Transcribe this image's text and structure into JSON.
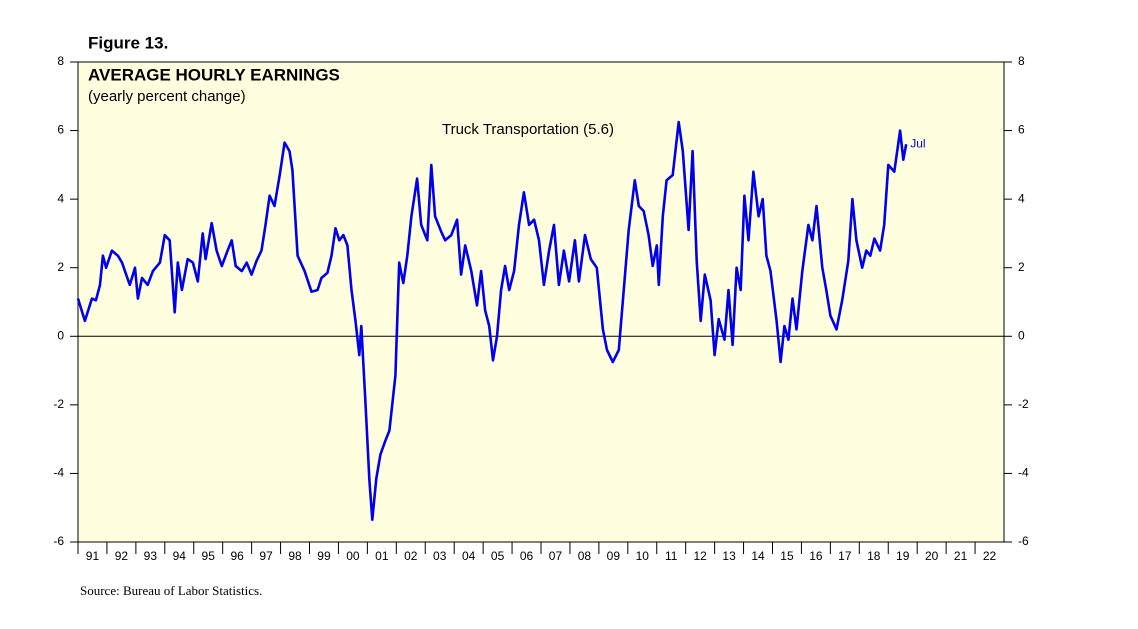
{
  "chart_data": {
    "type": "line",
    "figure_label": "Figure 13.",
    "title": "AVERAGE HOURLY EARNINGS",
    "subtitle": "(yearly percent change)",
    "end_label": "Jul",
    "source": "Source: Bureau of Labor Statistics.",
    "xlim": [
      1991,
      2023
    ],
    "xticks": [
      {
        "value": 1991,
        "label": "91"
      },
      {
        "value": 1992,
        "label": "92"
      },
      {
        "value": 1993,
        "label": "93"
      },
      {
        "value": 1994,
        "label": "94"
      },
      {
        "value": 1995,
        "label": "95"
      },
      {
        "value": 1996,
        "label": "96"
      },
      {
        "value": 1997,
        "label": "97"
      },
      {
        "value": 1998,
        "label": "98"
      },
      {
        "value": 1999,
        "label": "99"
      },
      {
        "value": 2000,
        "label": "00"
      },
      {
        "value": 2001,
        "label": "01"
      },
      {
        "value": 2002,
        "label": "02"
      },
      {
        "value": 2003,
        "label": "03"
      },
      {
        "value": 2004,
        "label": "04"
      },
      {
        "value": 2005,
        "label": "05"
      },
      {
        "value": 2006,
        "label": "06"
      },
      {
        "value": 2007,
        "label": "07"
      },
      {
        "value": 2008,
        "label": "08"
      },
      {
        "value": 2009,
        "label": "09"
      },
      {
        "value": 2010,
        "label": "10"
      },
      {
        "value": 2011,
        "label": "11"
      },
      {
        "value": 2012,
        "label": "12"
      },
      {
        "value": 2013,
        "label": "13"
      },
      {
        "value": 2014,
        "label": "14"
      },
      {
        "value": 2015,
        "label": "15"
      },
      {
        "value": 2016,
        "label": "16"
      },
      {
        "value": 2017,
        "label": "17"
      },
      {
        "value": 2018,
        "label": "18"
      },
      {
        "value": 2019,
        "label": "19"
      },
      {
        "value": 2020,
        "label": "20"
      },
      {
        "value": 2021,
        "label": "21"
      },
      {
        "value": 2022,
        "label": "22"
      }
    ],
    "ylim": [
      -6,
      8
    ],
    "yticks": [
      -6,
      -4,
      -2,
      0,
      2,
      4,
      6,
      8
    ],
    "y2lim": [
      -6,
      8
    ],
    "y2ticks": [
      -6,
      -4,
      -2,
      0,
      2,
      4,
      6,
      8
    ],
    "background": "#ffffe0",
    "x": [
      1991.0,
      1991.24,
      1991.48,
      1991.62,
      1991.76,
      1991.86,
      1991.97,
      1992.17,
      1992.38,
      1992.52,
      1992.79,
      1992.97,
      1993.07,
      1993.21,
      1993.41,
      1993.59,
      1993.83,
      1994.0,
      1994.17,
      1994.34,
      1994.45,
      1994.59,
      1994.79,
      1994.97,
      1995.14,
      1995.31,
      1995.41,
      1995.62,
      1995.79,
      1995.97,
      1996.17,
      1996.31,
      1996.45,
      1996.66,
      1996.83,
      1997.0,
      1997.17,
      1997.34,
      1997.48,
      1997.62,
      1997.79,
      1997.97,
      1998.14,
      1998.31,
      1998.41,
      1998.59,
      1998.83,
      1999.07,
      1999.28,
      1999.41,
      1999.62,
      1999.76,
      1999.9,
      2000.03,
      2000.17,
      2000.31,
      2000.45,
      2000.59,
      2000.72,
      2000.79,
      2000.93,
      2001.07,
      2001.17,
      2001.31,
      2001.45,
      2001.62,
      2001.76,
      2001.97,
      2002.1,
      2002.24,
      2002.38,
      2002.52,
      2002.72,
      2002.86,
      2003.07,
      2003.21,
      2003.34,
      2003.55,
      2003.69,
      2003.9,
      2004.1,
      2004.24,
      2004.38,
      2004.59,
      2004.79,
      2004.93,
      2005.07,
      2005.21,
      2005.34,
      2005.48,
      2005.62,
      2005.76,
      2005.9,
      2006.07,
      2006.24,
      2006.41,
      2006.59,
      2006.76,
      2006.93,
      2007.1,
      2007.28,
      2007.45,
      2007.62,
      2007.79,
      2007.97,
      2008.17,
      2008.31,
      2008.52,
      2008.72,
      2008.93,
      2009.14,
      2009.28,
      2009.48,
      2009.69,
      2009.83,
      2010.03,
      2010.24,
      2010.38,
      2010.55,
      2010.72,
      2010.86,
      2011.0,
      2011.07,
      2011.21,
      2011.34,
      2011.55,
      2011.76,
      2011.9,
      2012.1,
      2012.24,
      2012.38,
      2012.52,
      2012.66,
      2012.86,
      2013.0,
      2013.14,
      2013.34,
      2013.48,
      2013.62,
      2013.76,
      2013.9,
      2014.03,
      2014.17,
      2014.34,
      2014.52,
      2014.66,
      2014.79,
      2014.93,
      2015.14,
      2015.28,
      2015.41,
      2015.55,
      2015.69,
      2015.83,
      2016.03,
      2016.24,
      2016.38,
      2016.52,
      2016.72,
      2016.86,
      2017.0,
      2017.21,
      2017.41,
      2017.62,
      2017.76,
      2017.9,
      2018.1,
      2018.24,
      2018.38,
      2018.52,
      2018.72,
      2018.86,
      2019.0,
      2019.21,
      2019.41,
      2019.52,
      2019.62
    ],
    "series": [
      {
        "name": "Truck Transportation (5.6)",
        "color": "#0000ee",
        "values": [
          1.1,
          0.45,
          1.1,
          1.05,
          1.5,
          2.35,
          2.0,
          2.5,
          2.35,
          2.15,
          1.5,
          2.0,
          1.1,
          1.7,
          1.5,
          1.9,
          2.15,
          2.95,
          2.8,
          0.7,
          2.15,
          1.35,
          2.25,
          2.15,
          1.6,
          3.0,
          2.25,
          3.3,
          2.5,
          2.05,
          2.5,
          2.8,
          2.05,
          1.9,
          2.15,
          1.8,
          2.2,
          2.5,
          3.25,
          4.1,
          3.8,
          4.7,
          5.65,
          5.4,
          4.85,
          2.35,
          1.9,
          1.3,
          1.35,
          1.7,
          1.85,
          2.35,
          3.15,
          2.8,
          2.95,
          2.65,
          1.35,
          0.45,
          -0.55,
          0.3,
          -1.85,
          -4.2,
          -5.35,
          -4.15,
          -3.45,
          -3.05,
          -2.75,
          -1.15,
          2.15,
          1.55,
          2.35,
          3.5,
          4.6,
          3.25,
          2.8,
          5.0,
          3.5,
          3.05,
          2.8,
          2.95,
          3.4,
          1.8,
          2.65,
          1.9,
          0.9,
          1.9,
          0.75,
          0.3,
          -0.7,
          0,
          1.35,
          2.05,
          1.35,
          1.9,
          3.25,
          4.2,
          3.25,
          3.4,
          2.8,
          1.5,
          2.5,
          3.25,
          1.5,
          2.5,
          1.6,
          2.8,
          1.6,
          2.95,
          2.25,
          2.0,
          0.2,
          -0.4,
          -0.75,
          -0.4,
          1.05,
          3.1,
          4.55,
          3.8,
          3.65,
          2.95,
          2.05,
          2.65,
          1.5,
          3.5,
          4.55,
          4.7,
          6.25,
          5.4,
          3.1,
          5.4,
          2.2,
          0.45,
          1.8,
          1.05,
          -0.55,
          0.5,
          -0.1,
          1.35,
          -0.25,
          2.0,
          1.35,
          4.1,
          2.8,
          4.8,
          3.5,
          4.0,
          2.35,
          1.9,
          0.45,
          -0.75,
          0.3,
          -0.1,
          1.1,
          0.2,
          1.9,
          3.25,
          2.8,
          3.8,
          2.0,
          1.35,
          0.6,
          0.2,
          1.05,
          2.2,
          4.0,
          2.8,
          2.0,
          2.5,
          2.35,
          2.85,
          2.5,
          3.25,
          5.0,
          4.8,
          6.0,
          5.15,
          5.6
        ]
      }
    ]
  }
}
